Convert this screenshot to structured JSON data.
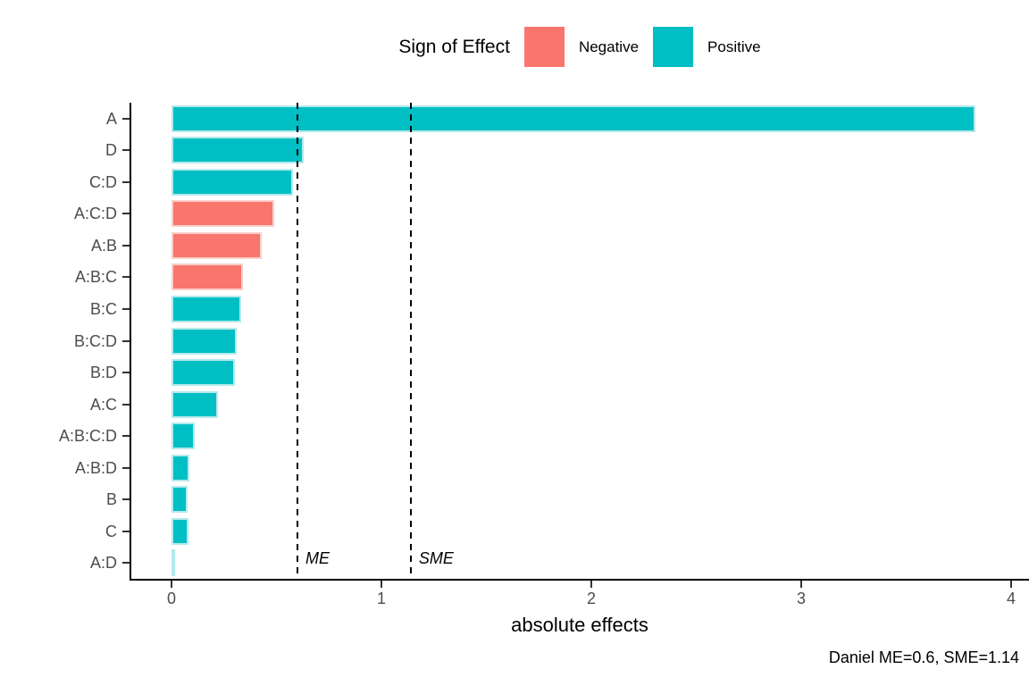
{
  "legend": {
    "title": "Sign of Effect",
    "items": [
      {
        "label": "Negative",
        "color": "#F8766D",
        "border_color": "#FBCFCA"
      },
      {
        "label": "Positive",
        "color": "#00BFC4",
        "border_color": "#B4E9EB"
      }
    ]
  },
  "chart_data": {
    "type": "bar",
    "orientation": "horizontal",
    "xlabel": "absolute effects",
    "ylabel": "",
    "xlim": [
      0,
      4
    ],
    "xticks": [
      0,
      1,
      2,
      3,
      4
    ],
    "grid": false,
    "legend_position": "top",
    "categories": [
      "A",
      "D",
      "C:D",
      "A:C:D",
      "A:B",
      "A:B:C",
      "B:C",
      "B:C:D",
      "B:D",
      "A:C",
      "A:B:C:D",
      "A:B:D",
      "B",
      "C",
      "A:D"
    ],
    "bars": [
      {
        "label": "A",
        "value": 3.83,
        "sign": "Positive"
      },
      {
        "label": "D",
        "value": 0.63,
        "sign": "Positive"
      },
      {
        "label": "C:D",
        "value": 0.58,
        "sign": "Positive"
      },
      {
        "label": "A:C:D",
        "value": 0.49,
        "sign": "Negative"
      },
      {
        "label": "A:B",
        "value": 0.43,
        "sign": "Negative"
      },
      {
        "label": "A:B:C",
        "value": 0.34,
        "sign": "Negative"
      },
      {
        "label": "B:C",
        "value": 0.33,
        "sign": "Positive"
      },
      {
        "label": "B:C:D",
        "value": 0.31,
        "sign": "Positive"
      },
      {
        "label": "B:D",
        "value": 0.3,
        "sign": "Positive"
      },
      {
        "label": "A:C",
        "value": 0.22,
        "sign": "Positive"
      },
      {
        "label": "A:B:C:D",
        "value": 0.11,
        "sign": "Positive"
      },
      {
        "label": "A:B:D",
        "value": 0.085,
        "sign": "Positive"
      },
      {
        "label": "B",
        "value": 0.077,
        "sign": "Positive"
      },
      {
        "label": "C",
        "value": 0.08,
        "sign": "Positive"
      },
      {
        "label": "A:D",
        "value": 0.006,
        "sign": "Positive"
      }
    ],
    "reference_lines": [
      {
        "label": "ME",
        "value": 0.6
      },
      {
        "label": "SME",
        "value": 1.14
      }
    ],
    "caption": "Daniel ME=0.6, SME=1.14"
  },
  "colors": {
    "negative": "#F8766D",
    "negative_border": "#FBCFCA",
    "positive": "#00BFC4",
    "positive_border": "#B4E9EB",
    "axis_text": "#4D4D4D",
    "axis_line": "#000000"
  }
}
